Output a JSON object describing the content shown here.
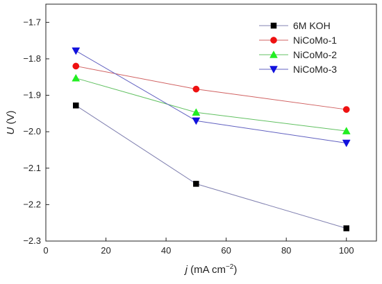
{
  "chart_data": {
    "type": "line",
    "xlabel_var": "j",
    "xlabel_unit": " (mA cm",
    "xlabel_sup": "−2",
    "xlabel_close": ")",
    "ylabel_var": "U",
    "ylabel_unit": " (V)",
    "xlim": [
      0,
      110
    ],
    "ylim": [
      -2.3,
      -1.65
    ],
    "xticks": [
      0,
      20,
      40,
      60,
      80,
      100
    ],
    "yticks": [
      -1.7,
      -1.8,
      -1.9,
      -2.0,
      -2.1,
      -2.2,
      -2.3
    ],
    "xtick_labels": [
      "0",
      "20",
      "40",
      "60",
      "80",
      "100"
    ],
    "ytick_labels": [
      "−1.7",
      "−1.8",
      "−1.9",
      "−2.0",
      "−2.1",
      "−2.2",
      "−2.3"
    ],
    "grid": false,
    "legend_position": "top-right",
    "x": [
      10,
      50,
      100
    ],
    "series": [
      {
        "name": "6M KOH",
        "marker": "square",
        "color": "#000000",
        "line_color": "#8080b0",
        "values": [
          -1.928,
          -2.143,
          -2.265
        ]
      },
      {
        "name": "NiCoMo-1",
        "marker": "circle",
        "color": "#ee1111",
        "line_color": "#d06060",
        "values": [
          -1.82,
          -1.883,
          -1.939
        ]
      },
      {
        "name": "NiCoMo-2",
        "marker": "triangle-up",
        "color": "#22ee22",
        "line_color": "#60c060",
        "values": [
          -1.853,
          -1.947,
          -1.998
        ]
      },
      {
        "name": "NiCoMo-3",
        "marker": "triangle-down",
        "color": "#1111dd",
        "line_color": "#6060c0",
        "values": [
          -1.778,
          -1.97,
          -2.031
        ]
      }
    ]
  }
}
